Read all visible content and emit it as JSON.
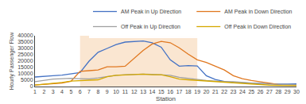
{
  "chart_data": {
    "type": "line",
    "xlabel": "Station",
    "ylabel": "Hourly Passenger Flow",
    "x": [
      1,
      2,
      3,
      4,
      5,
      6,
      7,
      8,
      9,
      10,
      11,
      12,
      13,
      14,
      15,
      16,
      17,
      18,
      19,
      20,
      21,
      22,
      23,
      24,
      25,
      26,
      27,
      28,
      29,
      30
    ],
    "series": [
      {
        "name": "AM Peak in Up Direction",
        "color": "#4472C4",
        "values": [
          7500,
          8200,
          8500,
          9000,
          9800,
          11000,
          20000,
          27000,
          30000,
          33000,
          35000,
          35500,
          35800,
          34500,
          31000,
          21000,
          16000,
          16500,
          16200,
          8500,
          5500,
          4000,
          3200,
          2900,
          2600,
          2300,
          2100,
          1900,
          1900,
          2100
        ]
      },
      {
        "name": "AM Peak in Down Direction",
        "color": "#E07820",
        "values": [
          1200,
          1800,
          2200,
          2800,
          4200,
          12000,
          12500,
          13000,
          15500,
          15500,
          16000,
          22500,
          28500,
          33500,
          35500,
          34500,
          30500,
          25500,
          21000,
          19000,
          16000,
          13000,
          8500,
          6200,
          4800,
          3800,
          2600,
          1600,
          1300,
          1100
        ]
      },
      {
        "name": "Off Peak in Up Direction",
        "color": "#A0A0A0",
        "values": [
          3800,
          5000,
          5800,
          6200,
          6500,
          6200,
          6000,
          6800,
          7800,
          8800,
          9300,
          9600,
          9800,
          9600,
          9300,
          8800,
          7200,
          6300,
          5300,
          4800,
          4300,
          3800,
          3800,
          3200,
          2800,
          2300,
          1900,
          1700,
          1500,
          1400
        ]
      },
      {
        "name": "Off Peak in Down Direction",
        "color": "#D4A800",
        "values": [
          1200,
          1800,
          2200,
          3200,
          4300,
          4600,
          4800,
          5300,
          7800,
          8800,
          9200,
          9600,
          9800,
          9300,
          9300,
          7800,
          5800,
          5300,
          4800,
          4300,
          3800,
          3200,
          2800,
          2300,
          1900,
          1500,
          1100,
          900,
          750,
          650
        ]
      }
    ],
    "xlim": [
      1,
      30
    ],
    "xticks": [
      1,
      2,
      3,
      4,
      5,
      6,
      7,
      8,
      9,
      10,
      11,
      12,
      13,
      14,
      15,
      16,
      17,
      18,
      19,
      20,
      21,
      22,
      23,
      24,
      25,
      26,
      27,
      28,
      29,
      30
    ],
    "ylim": [
      0,
      40000
    ],
    "yticks": [
      0,
      5000,
      10000,
      15000,
      20000,
      25000,
      30000,
      35000,
      40000
    ],
    "grid": false,
    "legend": "upper right",
    "shaded_span": {
      "x0": 6,
      "x1": 19,
      "color": "#F5C89A"
    }
  }
}
